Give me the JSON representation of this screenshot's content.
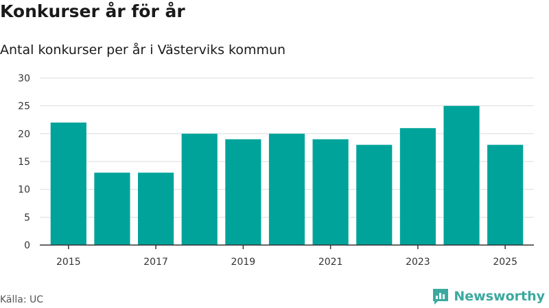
{
  "header": {
    "title": "Konkurser år för år",
    "subtitle": "Antal konkurser per år i Västerviks kommun"
  },
  "footer": {
    "source": "Källa: UC",
    "brand": "Newsworthy",
    "brand_color": "#3aa99f"
  },
  "chart_data": {
    "type": "bar",
    "title": "Konkurser år för år",
    "subtitle": "Antal konkurser per år i Västerviks kommun",
    "xlabel": "",
    "ylabel": "",
    "categories": [
      "2015",
      "2016",
      "2017",
      "2018",
      "2019",
      "2020",
      "2021",
      "2022",
      "2023",
      "2024",
      "2025"
    ],
    "x_tick_labels": [
      "2015",
      "2017",
      "2019",
      "2021",
      "2023",
      "2025"
    ],
    "values": [
      22,
      13,
      13,
      20,
      19,
      20,
      19,
      18,
      21,
      25,
      18
    ],
    "ylim": [
      0,
      30
    ],
    "y_ticks": [
      0,
      5,
      10,
      15,
      20,
      25,
      30
    ],
    "grid": true,
    "bar_color": "#00a39a",
    "legend": "none"
  }
}
